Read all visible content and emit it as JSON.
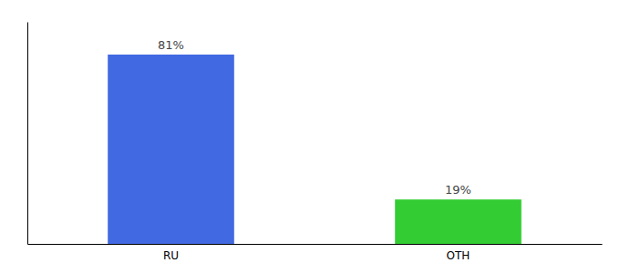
{
  "chart_data": {
    "type": "bar",
    "categories": [
      "RU",
      "OTH"
    ],
    "values": [
      81,
      19
    ],
    "value_labels": [
      "81%",
      "19%"
    ],
    "colors": [
      "#4169e1",
      "#33cc33"
    ],
    "ylim": [
      0,
      95
    ],
    "data_labels": true,
    "tick_labels": "x",
    "grid": false
  }
}
